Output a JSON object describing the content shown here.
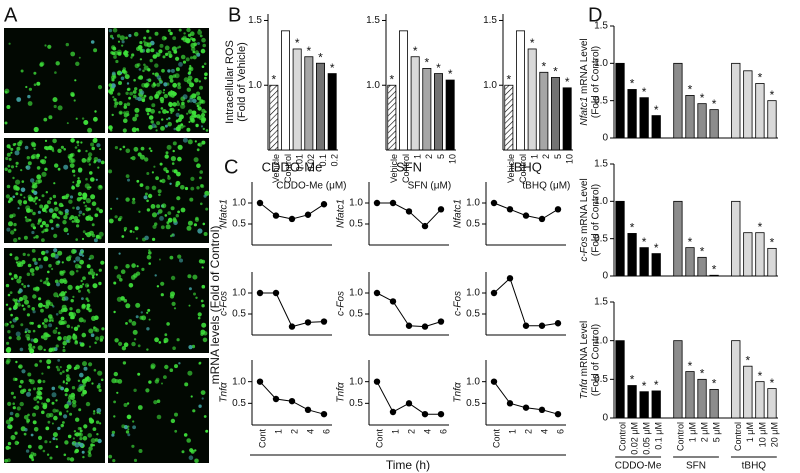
{
  "panels": [
    "A",
    "B",
    "C",
    "D"
  ],
  "panel_c": {
    "ylabel": "mRNA levels (Fold of Control)",
    "xlabel": "Time (h)"
  },
  "chart_data": [
    {
      "type": "bar",
      "ylabel": "Intracellular ROS",
      "ylabel2": "(Fold of Vehicle)",
      "xlabel": "CDDO-Me (μM)",
      "categories": [
        "Vehicle",
        "Control",
        "0.01",
        "0.02",
        "0.1",
        "0.2"
      ],
      "values": [
        1.0,
        1.42,
        1.28,
        1.22,
        1.17,
        1.09
      ],
      "colors": [
        "#ffffff",
        "#ffffff",
        "#d9d9d9",
        "#a6a6a6",
        "#737373",
        "#000000"
      ],
      "hatched": "Vehicle",
      "annotations": [
        "*",
        null,
        "*",
        "*",
        "*",
        "*"
      ],
      "ylim": [
        0.5,
        1.55
      ],
      "yticks": [
        {
          "value": 1.0,
          "label": "1.0"
        },
        {
          "value": 1.5,
          "label": "1.5"
        }
      ]
    },
    {
      "type": "bar",
      "xlabel": "SFN (μM)",
      "categories": [
        "Vehicle",
        "Control",
        "1",
        "2",
        "5",
        "10"
      ],
      "values": [
        1.0,
        1.42,
        1.22,
        1.13,
        1.09,
        1.04
      ],
      "colors": [
        "#ffffff",
        "#ffffff",
        "#d9d9d9",
        "#a6a6a6",
        "#737373",
        "#000000"
      ],
      "hatched": "Vehicle",
      "annotations": [
        "*",
        null,
        "*",
        "*",
        "*",
        "*"
      ],
      "ylim": [
        0.5,
        1.55
      ],
      "yticks": [
        {
          "value": 1.0,
          "label": "1.0"
        },
        {
          "value": 1.5,
          "label": "1.5"
        }
      ]
    },
    {
      "type": "bar",
      "xlabel": "tBHQ (μM)",
      "categories": [
        "Vehicle",
        "Control",
        "1",
        "2",
        "5",
        "10"
      ],
      "values": [
        1.0,
        1.42,
        1.28,
        1.1,
        1.06,
        0.98
      ],
      "colors": [
        "#ffffff",
        "#ffffff",
        "#d9d9d9",
        "#a6a6a6",
        "#737373",
        "#000000"
      ],
      "hatched": "Vehicle",
      "annotations": [
        "*",
        null,
        "*",
        "*",
        "*",
        "*"
      ],
      "ylim": [
        0.5,
        1.55
      ],
      "yticks": [
        {
          "value": 1.0,
          "label": "1.0"
        },
        {
          "value": 1.5,
          "label": "1.5"
        }
      ]
    },
    {
      "type": "line",
      "title": "CDDO-Me",
      "ylabel": "Nfatc1",
      "color": "#000000",
      "values": [
        1.0,
        0.7,
        0.62,
        0.72,
        0.97
      ],
      "ylim": [
        0,
        1.5
      ],
      "yticks": [
        0.5,
        {
          "value": 1.0,
          "label": "1.0"
        }
      ]
    },
    {
      "type": "line",
      "title": "SFN",
      "ylabel": "Nfatc1",
      "color": "#000000",
      "values": [
        1.0,
        1.0,
        0.8,
        0.45,
        0.85
      ],
      "ylim": [
        0,
        1.5
      ],
      "yticks": [
        0.5,
        {
          "value": 1.0,
          "label": "1.0"
        }
      ]
    },
    {
      "type": "line",
      "title": "tBHQ",
      "ylabel": "Nfatc1",
      "color": "#000000",
      "values": [
        1.0,
        0.85,
        0.7,
        0.62,
        0.85
      ],
      "ylim": [
        0,
        1.5
      ],
      "yticks": [
        0.5,
        {
          "value": 1.0,
          "label": "1.0"
        }
      ]
    },
    {
      "type": "line",
      "ylabel": "c-Fos",
      "color": "#000000",
      "values": [
        1.0,
        1.0,
        0.2,
        0.3,
        0.32
      ],
      "ylim": [
        0,
        1.5
      ],
      "yticks": [
        0.5,
        {
          "value": 1.0,
          "label": "1.0"
        }
      ]
    },
    {
      "type": "line",
      "ylabel": "c-Fos",
      "color": "#000000",
      "values": [
        1.0,
        0.8,
        0.22,
        0.2,
        0.32
      ],
      "ylim": [
        0,
        1.5
      ],
      "yticks": [
        0.5,
        {
          "value": 1.0,
          "label": "1.0"
        }
      ]
    },
    {
      "type": "line",
      "ylabel": "c-Fos",
      "color": "#000000",
      "values": [
        1.0,
        1.35,
        0.22,
        0.22,
        0.28
      ],
      "ylim": [
        0,
        1.5
      ],
      "yticks": [
        0.5,
        {
          "value": 1.0,
          "label": "1.0"
        }
      ]
    },
    {
      "type": "line",
      "ylabel": "Tnfα",
      "color": "#000000",
      "categories": [
        "Cont",
        "1",
        "2",
        "4",
        "6"
      ],
      "values": [
        1.0,
        0.6,
        0.55,
        0.35,
        0.25
      ],
      "ylim": [
        0,
        1.5
      ],
      "yticks": [
        0.5,
        {
          "value": 1.0,
          "label": "1.0"
        }
      ]
    },
    {
      "type": "line",
      "ylabel": "Tnfα",
      "color": "#000000",
      "categories": [
        "Cont",
        "1",
        "2",
        "4",
        "6"
      ],
      "values": [
        1.0,
        0.3,
        0.5,
        0.25,
        0.25
      ],
      "ylim": [
        0,
        1.5
      ],
      "yticks": [
        0.5,
        {
          "value": 1.0,
          "label": "1.0"
        }
      ]
    },
    {
      "type": "line",
      "ylabel": "Tnfα",
      "color": "#000000",
      "categories": [
        "Cont",
        "1",
        "2",
        "4",
        "6"
      ],
      "values": [
        1.0,
        0.5,
        0.4,
        0.35,
        0.25
      ],
      "ylim": [
        0,
        1.5
      ],
      "yticks": [
        0.5,
        {
          "value": 1.0,
          "label": "1.0"
        }
      ]
    },
    {
      "type": "bar",
      "gene": "Nfatc1",
      "ylabel": " mRNA Level",
      "ylabel2": "(Fold of Control)",
      "values": [
        1.0,
        0.65,
        0.54,
        0.3,
        1.0,
        0.57,
        0.46,
        0.38,
        1.0,
        0.9,
        0.73,
        0.5
      ],
      "colors": [
        "#000000",
        "#000000",
        "#000000",
        "#000000",
        "#8c8c8c",
        "#8c8c8c",
        "#8c8c8c",
        "#8c8c8c",
        "#d9d9d9",
        "#d9d9d9",
        "#d9d9d9",
        "#d9d9d9"
      ],
      "annotations": [
        null,
        "*",
        "*",
        "*",
        null,
        "*",
        "*",
        "*",
        null,
        null,
        "*",
        "*"
      ],
      "ylim": [
        0,
        1.5
      ],
      "yticks": [
        0,
        0.5,
        {
          "value": 1.0,
          "label": "1.0"
        },
        1.5
      ]
    },
    {
      "type": "bar",
      "gene": "c-Fos",
      "ylabel": " mRNA Level",
      "ylabel2": "(Fold of Control)",
      "values": [
        1.0,
        0.57,
        0.38,
        0.3,
        1.0,
        0.38,
        0.25,
        0.01,
        1.0,
        0.58,
        0.58,
        0.37
      ],
      "colors": [
        "#000000",
        "#000000",
        "#000000",
        "#000000",
        "#8c8c8c",
        "#8c8c8c",
        "#8c8c8c",
        "#8c8c8c",
        "#d9d9d9",
        "#d9d9d9",
        "#d9d9d9",
        "#d9d9d9"
      ],
      "annotations": [
        null,
        "*",
        "*",
        "*",
        null,
        "*",
        "*",
        "*",
        null,
        null,
        "*",
        "*"
      ],
      "ylim": [
        0,
        1.5
      ],
      "yticks": [
        0,
        0.5,
        {
          "value": 1.0,
          "label": "1.0"
        },
        1.5
      ]
    },
    {
      "type": "bar",
      "gene": "Tnfα",
      "ylabel": " mRNA Level",
      "ylabel2": "(Fold of Control)",
      "categories": [
        "Control",
        "0.02 μM",
        "0.05 μM",
        "0.1 μM",
        "Control",
        "1 μM",
        "2 μM",
        "5 μM",
        "Control",
        "1 μM",
        "10 μM",
        "20 μM"
      ],
      "groups": [
        "CDDO-Me",
        "SFN",
        "tBHQ"
      ],
      "values": [
        1.0,
        0.42,
        0.34,
        0.35,
        1.0,
        0.6,
        0.5,
        0.37,
        1.0,
        0.67,
        0.47,
        0.38
      ],
      "colors": [
        "#000000",
        "#000000",
        "#000000",
        "#000000",
        "#8c8c8c",
        "#8c8c8c",
        "#8c8c8c",
        "#8c8c8c",
        "#d9d9d9",
        "#d9d9d9",
        "#d9d9d9",
        "#d9d9d9"
      ],
      "annotations": [
        null,
        "*",
        "*",
        "*",
        null,
        "*",
        "*",
        "*",
        null,
        "*",
        "*",
        "*"
      ],
      "ylim": [
        0,
        1.5
      ],
      "yticks": [
        0,
        0.5,
        {
          "value": 1.0,
          "label": "1.0"
        },
        1.5
      ]
    }
  ]
}
